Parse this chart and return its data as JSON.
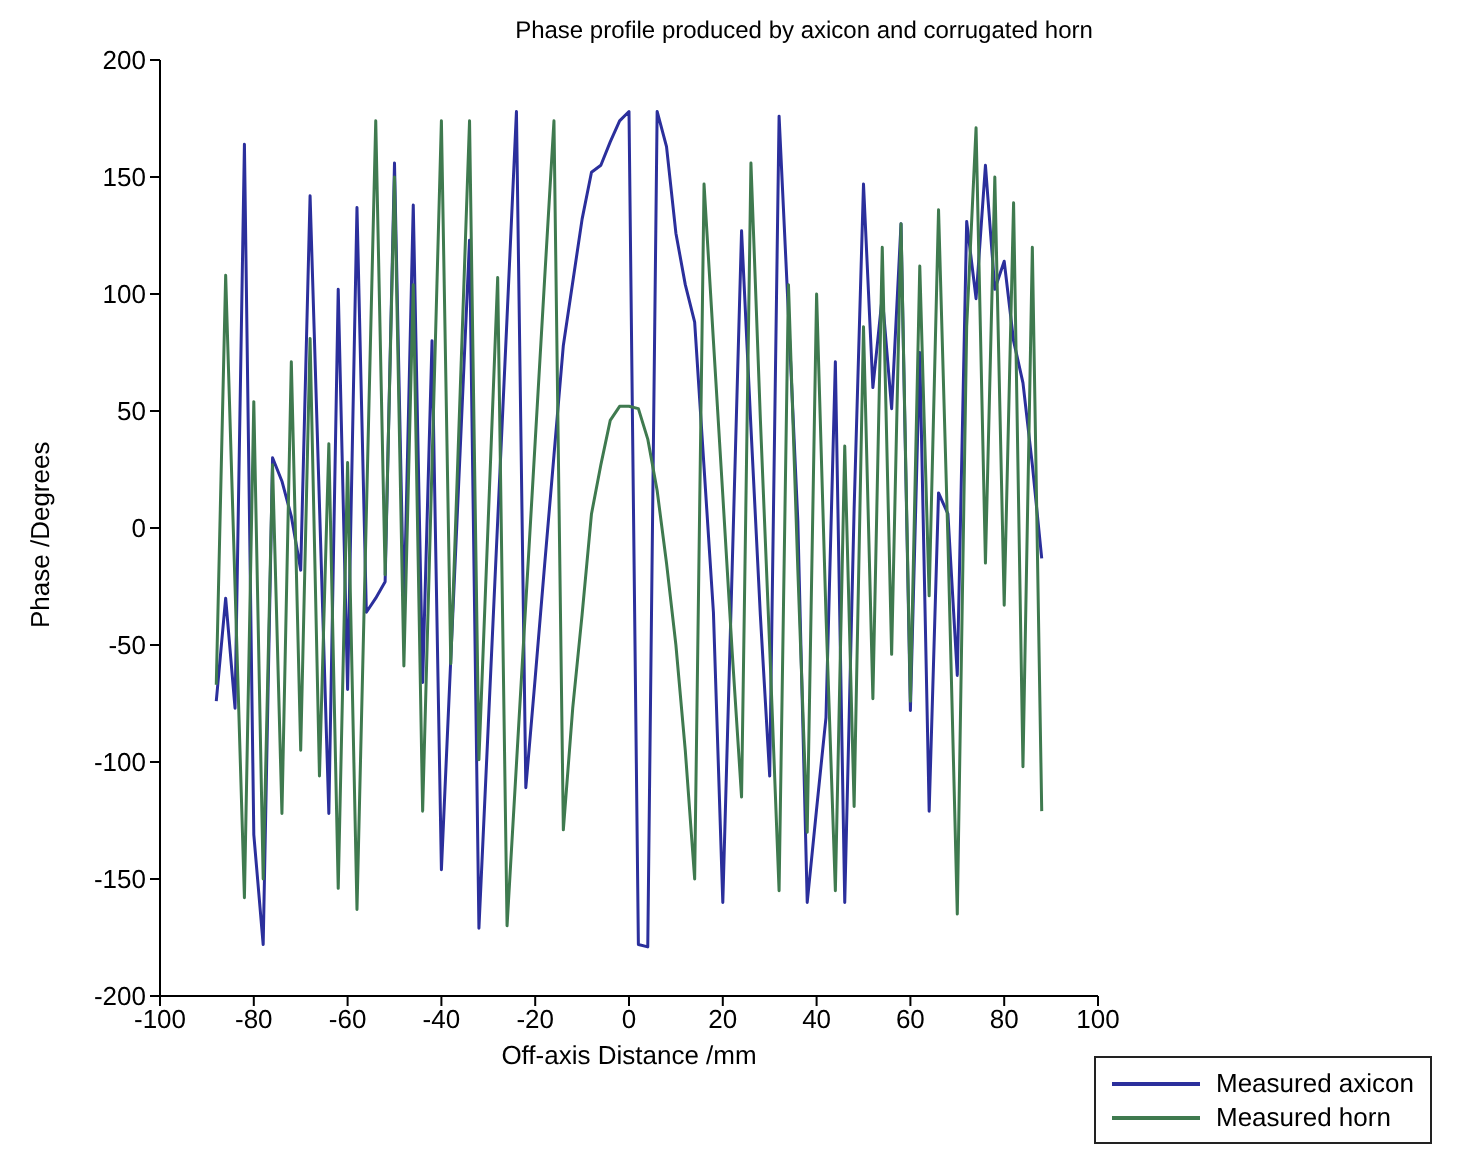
{
  "chart_data": {
    "type": "line",
    "title": "Phase profile produced by axicon and corrugated horn",
    "xlabel": "Off-axis Distance /mm",
    "ylabel": "Phase /Degrees",
    "x": [
      -88,
      -86,
      -84,
      -82,
      -80,
      -78,
      -76,
      -74,
      -72,
      -70,
      -68,
      -66,
      -64,
      -62,
      -60,
      -58,
      -56,
      -54,
      -52,
      -50,
      -48,
      -46,
      -44,
      -42,
      -40,
      -38,
      -36,
      -34,
      -32,
      -30,
      -28,
      -26,
      -24,
      -22,
      -20,
      -18,
      -16,
      -14,
      -12,
      -10,
      -8,
      -6,
      -4,
      -2,
      0,
      2,
      4,
      6,
      8,
      10,
      12,
      14,
      16,
      18,
      20,
      22,
      24,
      26,
      28,
      30,
      32,
      34,
      36,
      38,
      40,
      42,
      44,
      46,
      48,
      50,
      52,
      54,
      56,
      58,
      60,
      62,
      64,
      66,
      68,
      70,
      72,
      74,
      76,
      78,
      80,
      82,
      84,
      86,
      88
    ],
    "series": [
      {
        "name": "Measured axicon",
        "color": "#2b2f9c",
        "values": [
          -74,
          -30,
          -77,
          164,
          -131,
          -178,
          30,
          20,
          5,
          -18,
          142,
          10,
          -122,
          102,
          -69,
          137,
          -36,
          -30,
          -23,
          156,
          -37,
          138,
          -66,
          80,
          -146,
          -56,
          33,
          123,
          -171,
          -84,
          3,
          90,
          178,
          -111,
          -64,
          -16,
          31,
          78,
          105,
          132,
          152,
          155,
          165,
          174,
          178,
          -178,
          -179,
          178,
          163,
          126,
          104,
          88,
          26,
          -36,
          -160,
          -17,
          127,
          43,
          -37,
          -106,
          176,
          91,
          3,
          -160,
          -120,
          -81,
          71,
          -160,
          8,
          147,
          60,
          99,
          51,
          130,
          -78,
          75,
          -121,
          15,
          6,
          -63,
          131,
          98,
          155,
          102,
          114,
          80,
          62,
          27,
          -13
        ]
      },
      {
        "name": "Measured horn",
        "color": "#3f7a4f",
        "values": [
          -67,
          108,
          -25,
          -158,
          54,
          -150,
          27,
          -122,
          71,
          -95,
          81,
          -106,
          36,
          -154,
          28,
          -163,
          6,
          174,
          -20,
          150,
          -59,
          104,
          -121,
          27,
          174,
          -58,
          58,
          174,
          -99,
          4,
          107,
          -170,
          -101,
          -32,
          37,
          106,
          174,
          -129,
          -77,
          -37,
          6,
          27,
          46,
          52,
          52,
          51,
          38,
          16,
          -15,
          -50,
          -95,
          -150,
          147,
          80,
          14,
          -53,
          -115,
          156,
          47,
          -51,
          -155,
          104,
          -18,
          -130,
          100,
          -37,
          -155,
          35,
          -119,
          86,
          -73,
          120,
          -54,
          130,
          -74,
          112,
          -29,
          136,
          -5,
          -165,
          86,
          171,
          -15,
          150,
          -33,
          139,
          -102,
          120,
          -121
        ]
      }
    ],
    "xlim": [
      -100,
      100
    ],
    "xticks": [
      -100,
      -80,
      -60,
      -40,
      -20,
      0,
      20,
      40,
      60,
      80,
      100
    ],
    "ylim": [
      -200,
      200
    ],
    "yticks": [
      -200,
      -150,
      -100,
      -50,
      0,
      50,
      100,
      150,
      200
    ],
    "legend": "bottom right"
  }
}
